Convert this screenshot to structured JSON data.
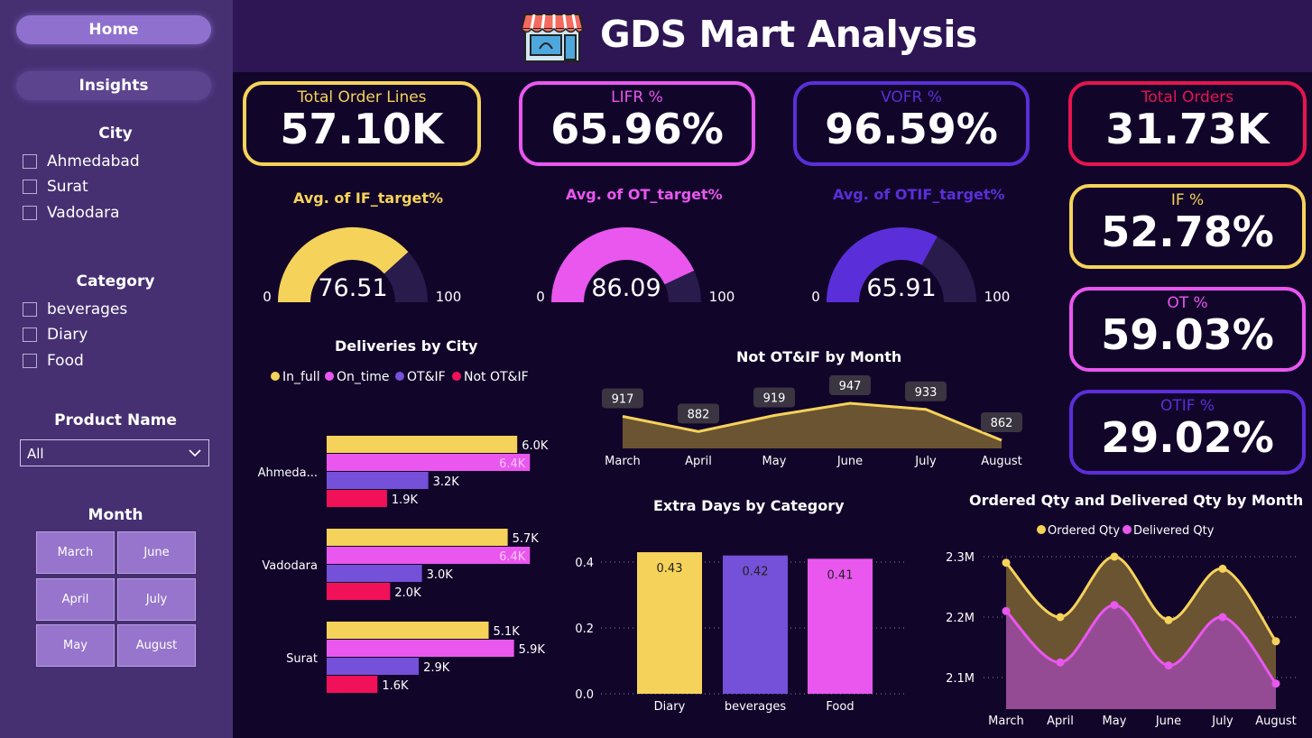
{
  "app": {
    "title": "GDS Mart Analysis"
  },
  "nav": {
    "home": "Home",
    "insights": "Insights"
  },
  "colors": {
    "in_full": "#f5d35a",
    "on_time": "#e957ef",
    "otif": "#7550d8",
    "not_otif": "#f01159",
    "track": "#2a1b4d"
  },
  "filters": {
    "city": {
      "title": "City",
      "options": [
        "Ahmedabad",
        "Surat",
        "Vadodara"
      ]
    },
    "category": {
      "title": "Category",
      "options": [
        "beverages",
        "Diary",
        "Food"
      ]
    },
    "product": {
      "title": "Product Name",
      "selected": "All"
    },
    "month": {
      "title": "Month",
      "options": [
        "March",
        "June",
        "April",
        "July",
        "May",
        "August"
      ]
    }
  },
  "kpis": {
    "total_order_lines": {
      "label": "Total Order Lines",
      "value": "57.10K"
    },
    "lifr": {
      "label": "LIFR %",
      "value": "65.96%"
    },
    "vofr": {
      "label": "VOFR %",
      "value": "96.59%"
    },
    "total_orders": {
      "label": "Total Orders",
      "value": "31.73K"
    },
    "if_pct": {
      "label": "IF %",
      "value": "52.78%"
    },
    "ot_pct": {
      "label": "OT %",
      "value": "59.03%"
    },
    "otif_pct": {
      "label": "OTIF %",
      "value": "29.02%"
    }
  },
  "gauges": [
    {
      "title": "Avg. of IF_target%",
      "value": 76.51,
      "display": "76.51",
      "min": "0",
      "max": "100",
      "color": "#f5d35a"
    },
    {
      "title": "Avg. of OT_target%",
      "value": 86.09,
      "display": "86.09",
      "min": "0",
      "max": "100",
      "color": "#e957ef"
    },
    {
      "title": "Avg. of OTIF_target%",
      "value": 65.91,
      "display": "65.91",
      "min": "0",
      "max": "100",
      "color": "#5a2fd9"
    }
  ],
  "chart_data": [
    {
      "type": "bar",
      "orientation": "horizontal",
      "title": "Deliveries by City",
      "legend_position": "top",
      "categories": [
        "Ahmeda...",
        "Vadodara",
        "Surat"
      ],
      "series": [
        {
          "name": "In_full",
          "values": [
            6.0,
            5.7,
            5.1
          ],
          "labels": [
            "6.0K",
            "5.7K",
            "5.1K"
          ]
        },
        {
          "name": "On_time",
          "values": [
            6.4,
            6.4,
            5.9
          ],
          "labels": [
            "6.4K",
            "6.4K",
            "5.9K"
          ]
        },
        {
          "name": "OT&IF",
          "values": [
            3.2,
            3.0,
            2.9
          ],
          "labels": [
            "3.2K",
            "3.0K",
            "2.9K"
          ]
        },
        {
          "name": "Not OT&IF",
          "values": [
            1.9,
            2.0,
            1.6
          ],
          "labels": [
            "1.9K",
            "2.0K",
            "1.6K"
          ]
        }
      ],
      "xlim": [
        0,
        7
      ]
    },
    {
      "type": "area",
      "title": "Not OT&IF by Month",
      "x": [
        "March",
        "April",
        "May",
        "June",
        "July",
        "August"
      ],
      "values": [
        917,
        882,
        919,
        947,
        933,
        862
      ],
      "ylim": [
        840,
        960
      ]
    },
    {
      "type": "bar",
      "title": "Extra Days by Category",
      "categories": [
        "Diary",
        "beverages",
        "Food"
      ],
      "values": [
        0.43,
        0.42,
        0.41
      ],
      "value_labels": [
        "0.43",
        "0.42",
        "0.41"
      ],
      "yticks": [
        "0.0",
        "0.2",
        "0.4"
      ],
      "ylim": [
        0,
        0.45
      ],
      "grid": true
    },
    {
      "type": "area",
      "title": "Ordered Qty and Delivered Qty by Month",
      "legend_position": "top",
      "x": [
        "March",
        "April",
        "May",
        "June",
        "July",
        "August"
      ],
      "series": [
        {
          "name": "Ordered Qty",
          "values": [
            2.29,
            2.2,
            2.3,
            2.195,
            2.28,
            2.16
          ]
        },
        {
          "name": "Delivered Qty",
          "values": [
            2.21,
            2.125,
            2.22,
            2.12,
            2.2,
            2.09
          ]
        }
      ],
      "yticks": [
        "2.1M",
        "2.2M",
        "2.3M"
      ],
      "ylim": [
        2.05,
        2.33
      ],
      "grid": true
    }
  ]
}
